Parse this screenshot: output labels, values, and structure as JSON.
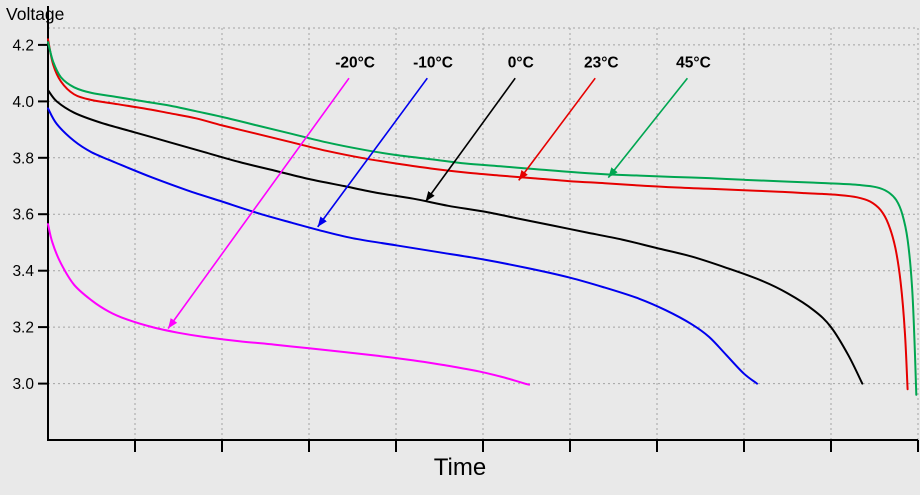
{
  "page": {
    "background": "#e9e9e9"
  },
  "style": {
    "grid_color": "#a3a3a3",
    "axis_color": "#000000",
    "text_color": "#000000"
  },
  "chart_data": {
    "type": "line",
    "title": "",
    "xlabel": "Time",
    "ylabel": "Voltage",
    "x_range": [
      0,
      1
    ],
    "y_range": [
      2.8,
      4.26
    ],
    "y_ticks": [
      4.2,
      4.0,
      3.8,
      3.6,
      3.4,
      3.2,
      3.0
    ],
    "x_ticks": [
      0.1,
      0.2,
      0.3,
      0.4,
      0.5,
      0.6,
      0.7,
      0.8,
      0.9,
      1.0
    ],
    "grid": true,
    "legend": "inline-annotations",
    "series": [
      {
        "name": "-20°C",
        "color": "#ff00ff",
        "points": [
          [
            0,
            3.565
          ],
          [
            0.005,
            3.5
          ],
          [
            0.015,
            3.425
          ],
          [
            0.03,
            3.35
          ],
          [
            0.05,
            3.295
          ],
          [
            0.07,
            3.255
          ],
          [
            0.09,
            3.228
          ],
          [
            0.12,
            3.2
          ],
          [
            0.15,
            3.18
          ],
          [
            0.18,
            3.165
          ],
          [
            0.22,
            3.15
          ],
          [
            0.26,
            3.138
          ],
          [
            0.3,
            3.125
          ],
          [
            0.34,
            3.112
          ],
          [
            0.38,
            3.098
          ],
          [
            0.42,
            3.082
          ],
          [
            0.45,
            3.068
          ],
          [
            0.48,
            3.052
          ],
          [
            0.5,
            3.04
          ],
          [
            0.52,
            3.025
          ],
          [
            0.535,
            3.012
          ],
          [
            0.548,
            3.0
          ],
          [
            0.553,
            2.996
          ]
        ]
      },
      {
        "name": "-10°C",
        "color": "#0000ee",
        "points": [
          [
            0,
            3.975
          ],
          [
            0.01,
            3.92
          ],
          [
            0.03,
            3.86
          ],
          [
            0.05,
            3.82
          ],
          [
            0.08,
            3.78
          ],
          [
            0.12,
            3.73
          ],
          [
            0.16,
            3.685
          ],
          [
            0.2,
            3.645
          ],
          [
            0.24,
            3.605
          ],
          [
            0.28,
            3.57
          ],
          [
            0.31,
            3.545
          ],
          [
            0.35,
            3.515
          ],
          [
            0.4,
            3.49
          ],
          [
            0.45,
            3.465
          ],
          [
            0.5,
            3.44
          ],
          [
            0.55,
            3.41
          ],
          [
            0.6,
            3.375
          ],
          [
            0.64,
            3.34
          ],
          [
            0.68,
            3.3
          ],
          [
            0.71,
            3.26
          ],
          [
            0.74,
            3.21
          ],
          [
            0.76,
            3.165
          ],
          [
            0.78,
            3.1
          ],
          [
            0.8,
            3.035
          ],
          [
            0.815,
            3.0
          ]
        ]
      },
      {
        "name": "0°C",
        "color": "#000000",
        "points": [
          [
            0,
            4.04
          ],
          [
            0.01,
            4.0
          ],
          [
            0.03,
            3.96
          ],
          [
            0.06,
            3.925
          ],
          [
            0.1,
            3.89
          ],
          [
            0.14,
            3.855
          ],
          [
            0.18,
            3.82
          ],
          [
            0.22,
            3.785
          ],
          [
            0.26,
            3.755
          ],
          [
            0.3,
            3.725
          ],
          [
            0.34,
            3.7
          ],
          [
            0.38,
            3.675
          ],
          [
            0.42,
            3.655
          ],
          [
            0.46,
            3.63
          ],
          [
            0.5,
            3.61
          ],
          [
            0.54,
            3.585
          ],
          [
            0.58,
            3.56
          ],
          [
            0.62,
            3.535
          ],
          [
            0.66,
            3.51
          ],
          [
            0.7,
            3.48
          ],
          [
            0.74,
            3.45
          ],
          [
            0.78,
            3.41
          ],
          [
            0.82,
            3.365
          ],
          [
            0.85,
            3.32
          ],
          [
            0.88,
            3.26
          ],
          [
            0.9,
            3.2
          ],
          [
            0.92,
            3.1
          ],
          [
            0.936,
            3.0
          ]
        ]
      },
      {
        "name": "23°C",
        "color": "#e60000",
        "points": [
          [
            0,
            4.22
          ],
          [
            0.006,
            4.13
          ],
          [
            0.015,
            4.07
          ],
          [
            0.03,
            4.025
          ],
          [
            0.05,
            4.005
          ],
          [
            0.08,
            3.99
          ],
          [
            0.11,
            3.975
          ],
          [
            0.14,
            3.958
          ],
          [
            0.17,
            3.94
          ],
          [
            0.2,
            3.915
          ],
          [
            0.24,
            3.885
          ],
          [
            0.28,
            3.855
          ],
          [
            0.32,
            3.825
          ],
          [
            0.36,
            3.8
          ],
          [
            0.4,
            3.78
          ],
          [
            0.44,
            3.762
          ],
          [
            0.48,
            3.748
          ],
          [
            0.52,
            3.737
          ],
          [
            0.56,
            3.727
          ],
          [
            0.6,
            3.717
          ],
          [
            0.64,
            3.71
          ],
          [
            0.68,
            3.702
          ],
          [
            0.72,
            3.695
          ],
          [
            0.76,
            3.69
          ],
          [
            0.8,
            3.685
          ],
          [
            0.84,
            3.68
          ],
          [
            0.87,
            3.675
          ],
          [
            0.89,
            3.672
          ],
          [
            0.91,
            3.668
          ],
          [
            0.93,
            3.66
          ],
          [
            0.945,
            3.645
          ],
          [
            0.957,
            3.615
          ],
          [
            0.966,
            3.565
          ],
          [
            0.974,
            3.48
          ],
          [
            0.98,
            3.36
          ],
          [
            0.985,
            3.18
          ],
          [
            0.988,
            2.98
          ]
        ]
      },
      {
        "name": "45°C",
        "color": "#00a651",
        "points": [
          [
            0,
            4.21
          ],
          [
            0.006,
            4.14
          ],
          [
            0.015,
            4.085
          ],
          [
            0.03,
            4.05
          ],
          [
            0.05,
            4.03
          ],
          [
            0.08,
            4.015
          ],
          [
            0.11,
            4.0
          ],
          [
            0.14,
            3.985
          ],
          [
            0.17,
            3.965
          ],
          [
            0.2,
            3.945
          ],
          [
            0.24,
            3.915
          ],
          [
            0.28,
            3.885
          ],
          [
            0.32,
            3.855
          ],
          [
            0.36,
            3.83
          ],
          [
            0.4,
            3.81
          ],
          [
            0.44,
            3.795
          ],
          [
            0.48,
            3.78
          ],
          [
            0.52,
            3.77
          ],
          [
            0.56,
            3.76
          ],
          [
            0.6,
            3.75
          ],
          [
            0.64,
            3.742
          ],
          [
            0.68,
            3.737
          ],
          [
            0.72,
            3.732
          ],
          [
            0.76,
            3.728
          ],
          [
            0.8,
            3.722
          ],
          [
            0.84,
            3.717
          ],
          [
            0.88,
            3.712
          ],
          [
            0.91,
            3.708
          ],
          [
            0.935,
            3.703
          ],
          [
            0.952,
            3.696
          ],
          [
            0.965,
            3.68
          ],
          [
            0.975,
            3.65
          ],
          [
            0.982,
            3.6
          ],
          [
            0.988,
            3.51
          ],
          [
            0.993,
            3.35
          ],
          [
            0.996,
            3.15
          ],
          [
            0.998,
            2.96
          ]
        ]
      }
    ],
    "annotations": [
      {
        "label": "-20°C",
        "color": "#ff00ff",
        "label_pos": [
          0.353,
          4.12
        ],
        "arrow_from": [
          0.346,
          4.082
        ],
        "arrow_to": [
          0.138,
          3.195
        ]
      },
      {
        "label": "-10°C",
        "color": "#0000ee",
        "label_pos": [
          0.4425,
          4.12
        ],
        "arrow_from": [
          0.436,
          4.082
        ],
        "arrow_to": [
          0.31,
          3.555
        ]
      },
      {
        "label": "0°C",
        "color": "#000000",
        "label_pos": [
          0.5435,
          4.12
        ],
        "arrow_from": [
          0.537,
          4.082
        ],
        "arrow_to": [
          0.434,
          3.645
        ]
      },
      {
        "label": "23°C",
        "color": "#e60000",
        "label_pos": [
          0.636,
          4.12
        ],
        "arrow_from": [
          0.629,
          4.082
        ],
        "arrow_to": [
          0.541,
          3.72
        ]
      },
      {
        "label": "45°C",
        "color": "#00a651",
        "label_pos": [
          0.742,
          4.12
        ],
        "arrow_from": [
          0.735,
          4.082
        ],
        "arrow_to": [
          0.644,
          3.73
        ]
      }
    ]
  }
}
